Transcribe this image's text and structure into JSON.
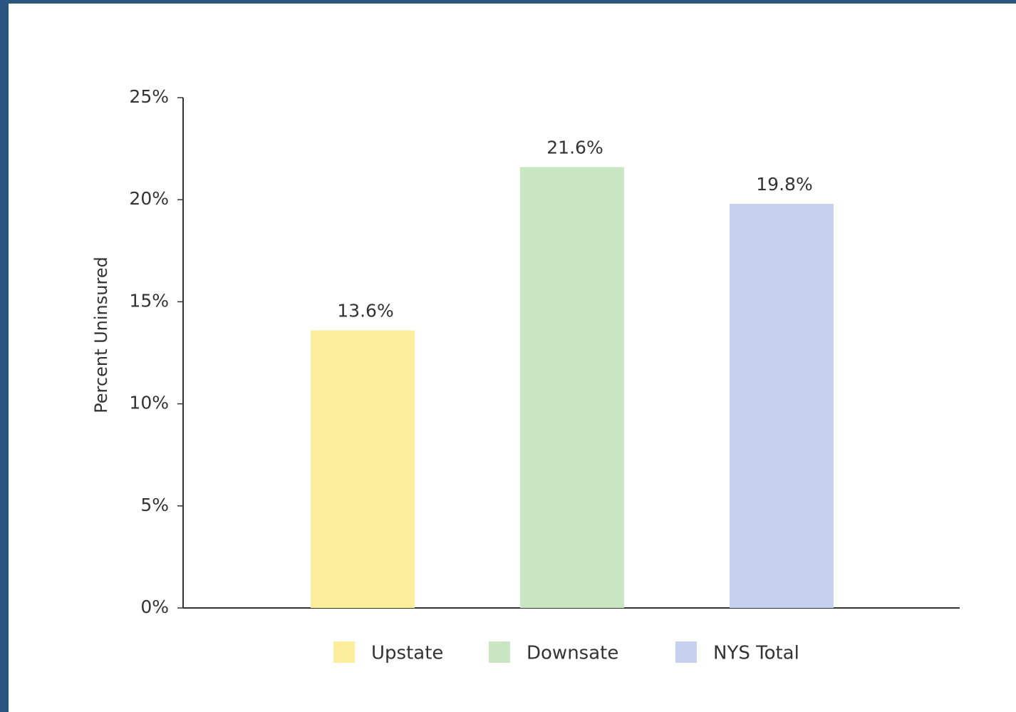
{
  "chart_data": {
    "type": "bar",
    "y_axis_label": "Percent Uninsured",
    "categories": [
      "Upstate",
      "Downsate",
      "NYS Total"
    ],
    "values": [
      13.6,
      21.6,
      19.8
    ],
    "value_labels": [
      "13.6%",
      "21.6%",
      "19.8%"
    ],
    "colors": [
      "#fcee9a",
      "#c8e6c1",
      "#c5d1ef"
    ],
    "ylim": [
      0,
      25
    ],
    "yticks": [
      {
        "value": 0,
        "label": "0%"
      },
      {
        "value": 5,
        "label": "5%"
      },
      {
        "value": 10,
        "label": "10%"
      },
      {
        "value": 15,
        "label": "15%"
      },
      {
        "value": 20,
        "label": "20%"
      },
      {
        "value": 25,
        "label": "25%"
      }
    ],
    "grid": false,
    "legend": "bottom"
  }
}
